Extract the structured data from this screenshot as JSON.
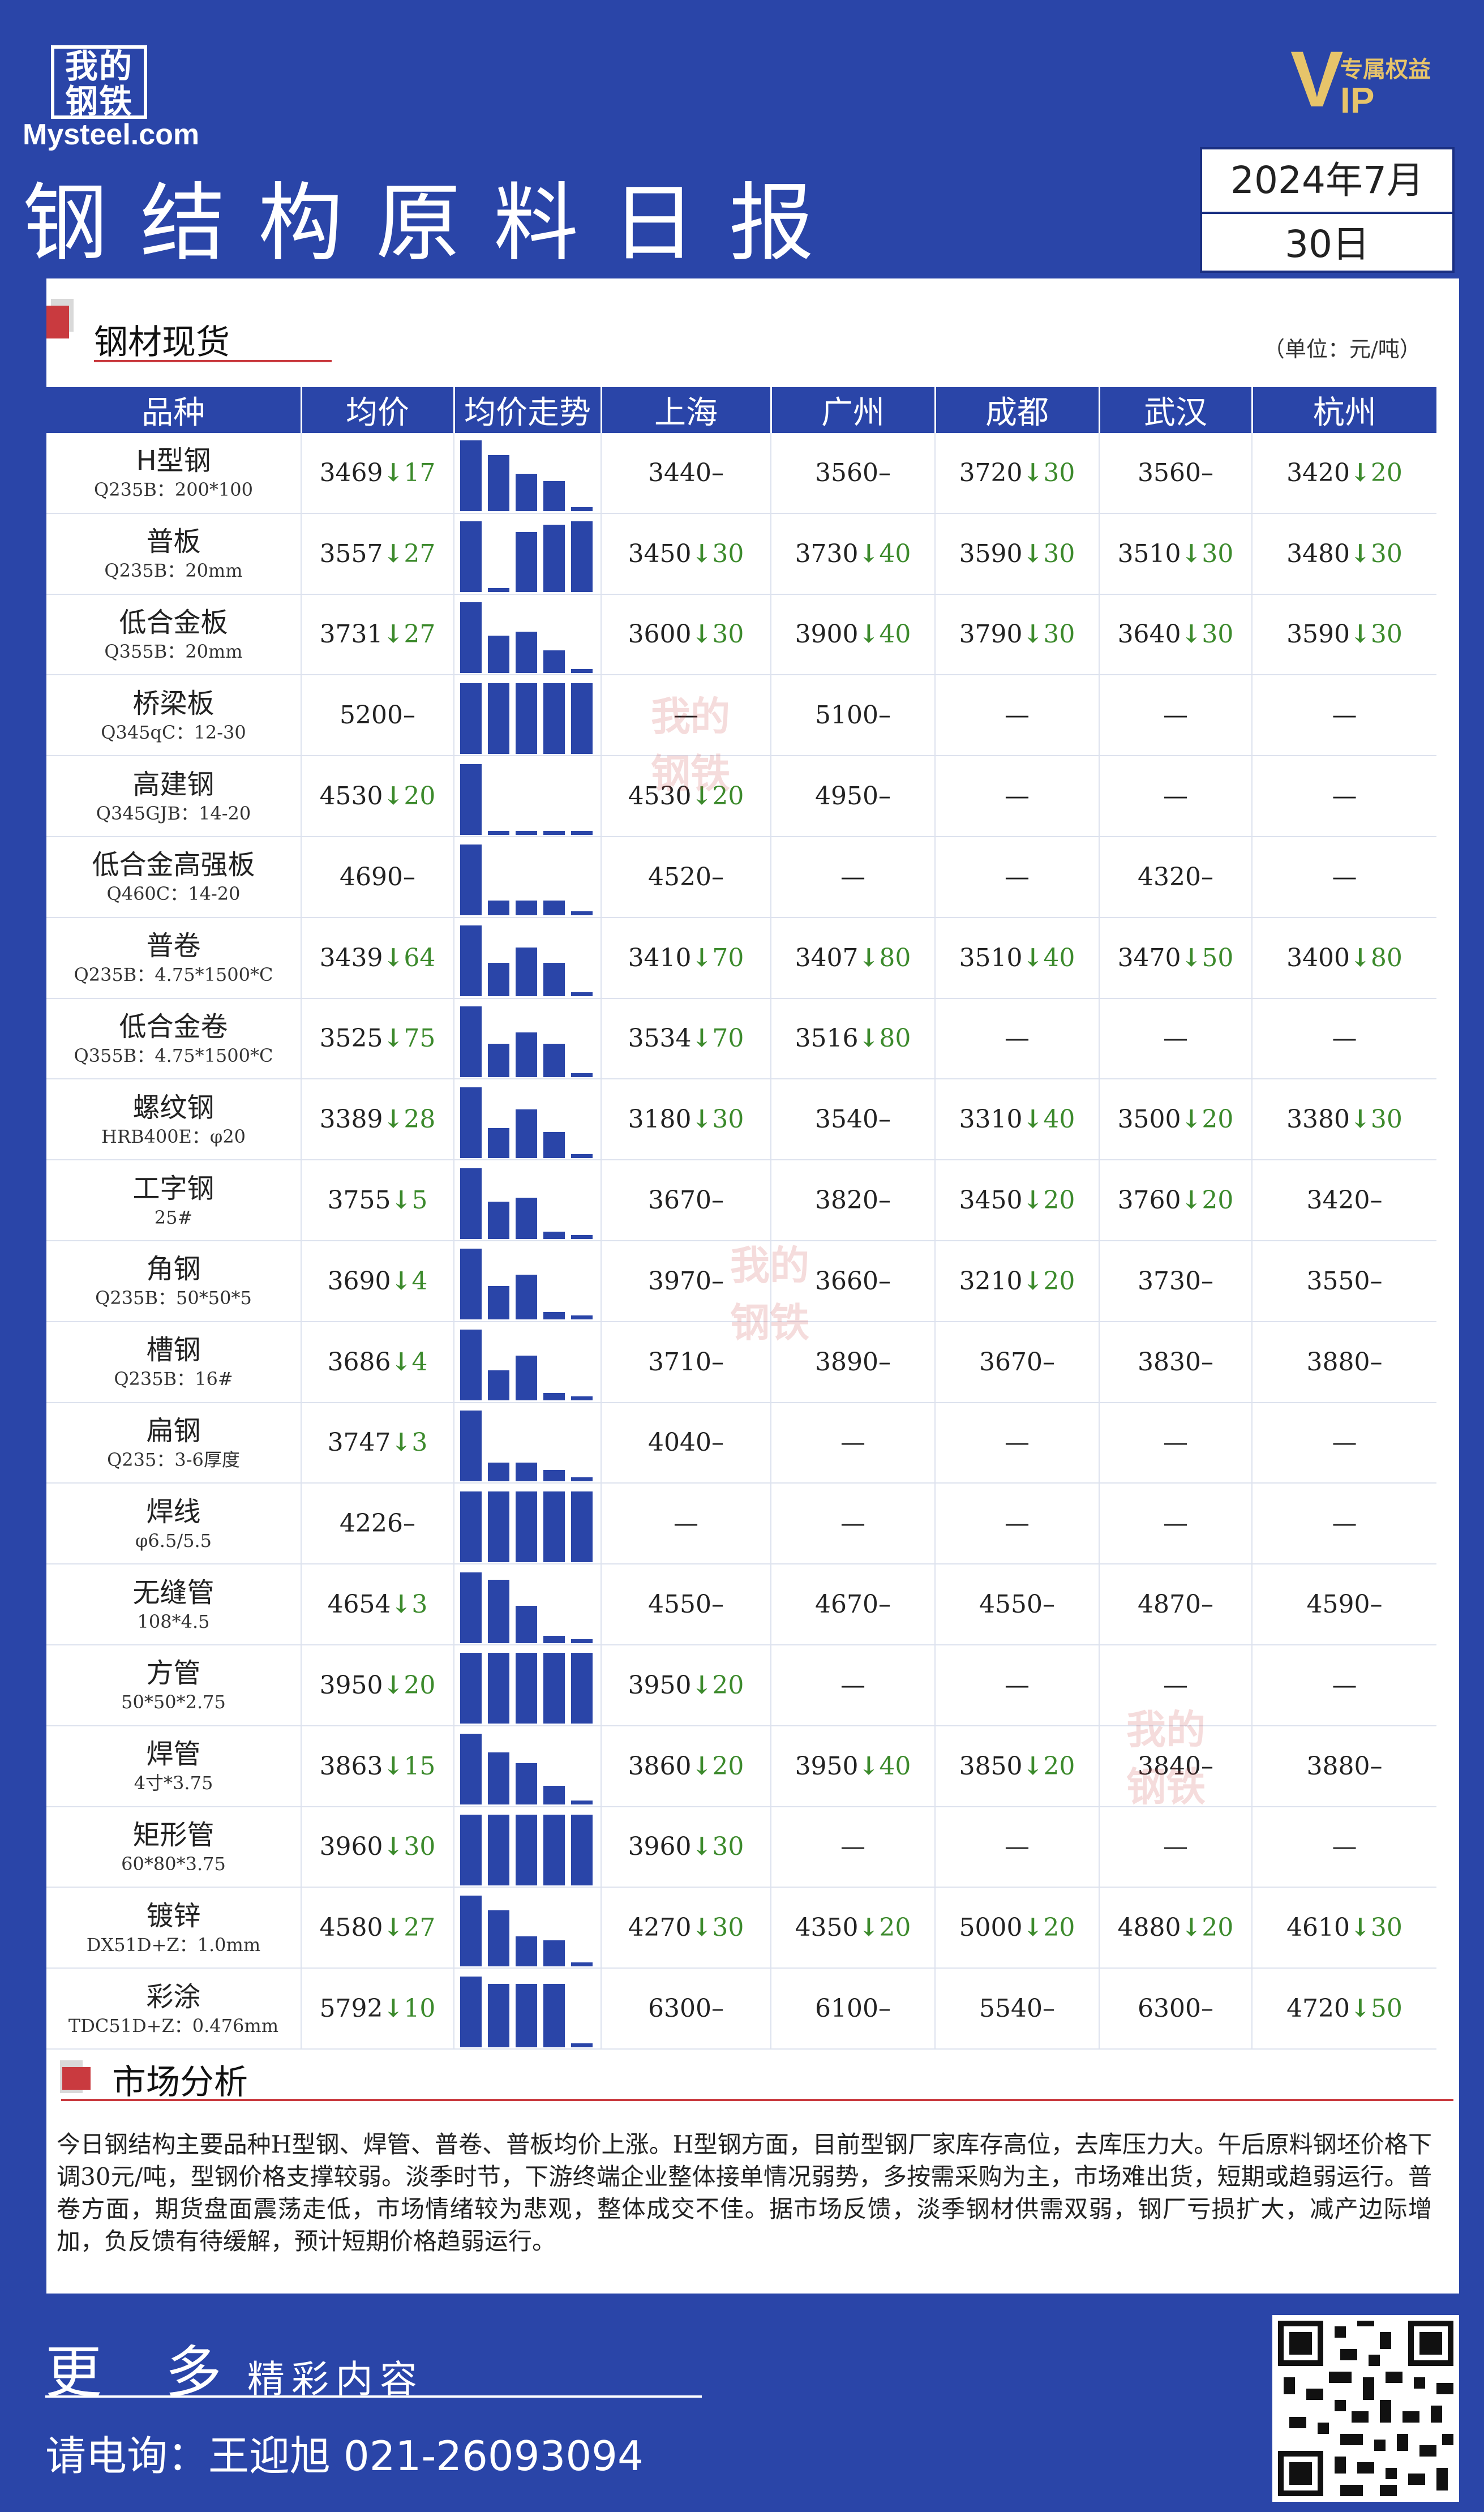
{
  "header": {
    "logo_cn": "我的钢铁",
    "logo_en": "Mysteel.com",
    "vip_badge": "专属权益",
    "title": "钢结构原料日报",
    "date_month": "2024年7月",
    "date_day": "30日"
  },
  "section1": {
    "title": "钢材现货",
    "unit": "（单位：元/吨）"
  },
  "table": {
    "columns": [
      "品种",
      "均价",
      "均价走势",
      "上海",
      "广州",
      "成都",
      "武汉",
      "杭州"
    ],
    "rows": [
      {
        "name": "H型钢",
        "spec": "Q235B：200*100",
        "avg": "3469",
        "avg_chg": "17",
        "bars": [
          0.95,
          0.75,
          0.5,
          0.4,
          0.05
        ],
        "sh": "3440",
        "sh_chg": "",
        "gz": "3560",
        "gz_chg": "",
        "cd": "3720",
        "cd_chg": "30",
        "wh": "3560",
        "wh_chg": "",
        "hz": "3420",
        "hz_chg": "20"
      },
      {
        "name": "普板",
        "spec": "Q235B：20mm",
        "avg": "3557",
        "avg_chg": "27",
        "bars": [
          0.95,
          0.05,
          0.8,
          0.9,
          0.95
        ],
        "sh": "3450",
        "sh_chg": "30",
        "gz": "3730",
        "gz_chg": "40",
        "cd": "3590",
        "cd_chg": "30",
        "wh": "3510",
        "wh_chg": "30",
        "hz": "3480",
        "hz_chg": "30"
      },
      {
        "name": "低合金板",
        "spec": "Q355B：20mm",
        "avg": "3731",
        "avg_chg": "27",
        "bars": [
          0.95,
          0.5,
          0.55,
          0.3,
          0.05
        ],
        "sh": "3600",
        "sh_chg": "30",
        "gz": "3900",
        "gz_chg": "40",
        "cd": "3790",
        "cd_chg": "30",
        "wh": "3640",
        "wh_chg": "30",
        "hz": "3590",
        "hz_chg": "30"
      },
      {
        "name": "桥梁板",
        "spec": "Q345qC：12-30",
        "avg": "5200",
        "avg_chg": "",
        "bars": [
          0.95,
          0.95,
          0.95,
          0.95,
          0.95
        ],
        "sh": "—",
        "sh_chg": "",
        "gz": "5100",
        "gz_chg": "",
        "cd": "—",
        "cd_chg": "",
        "wh": "—",
        "wh_chg": "",
        "hz": "—",
        "hz_chg": ""
      },
      {
        "name": "高建钢",
        "spec": "Q345GJB：14-20",
        "avg": "4530",
        "avg_chg": "20",
        "bars": [
          0.95,
          0.05,
          0.05,
          0.05,
          0.05
        ],
        "sh": "4530",
        "sh_chg": "20",
        "gz": "4950",
        "gz_chg": "",
        "cd": "—",
        "cd_chg": "",
        "wh": "—",
        "wh_chg": "",
        "hz": "—",
        "hz_chg": ""
      },
      {
        "name": "低合金高强板",
        "spec": "Q460C：14-20",
        "avg": "4690",
        "avg_chg": "",
        "bars": [
          0.95,
          0.2,
          0.2,
          0.2,
          0.05
        ],
        "sh": "4520",
        "sh_chg": "",
        "gz": "—",
        "gz_chg": "",
        "cd": "—",
        "cd_chg": "",
        "wh": "4320",
        "wh_chg": "",
        "hz": "—",
        "hz_chg": ""
      },
      {
        "name": "普卷",
        "spec": "Q235B：4.75*1500*C",
        "avg": "3439",
        "avg_chg": "64",
        "bars": [
          0.95,
          0.45,
          0.65,
          0.45,
          0.05
        ],
        "sh": "3410",
        "sh_chg": "70",
        "gz": "3407",
        "gz_chg": "80",
        "cd": "3510",
        "cd_chg": "40",
        "wh": "3470",
        "wh_chg": "50",
        "hz": "3400",
        "hz_chg": "80"
      },
      {
        "name": "低合金卷",
        "spec": "Q355B：4.75*1500*C",
        "avg": "3525",
        "avg_chg": "75",
        "bars": [
          0.95,
          0.45,
          0.6,
          0.45,
          0.05
        ],
        "sh": "3534",
        "sh_chg": "70",
        "gz": "3516",
        "gz_chg": "80",
        "cd": "—",
        "cd_chg": "",
        "wh": "—",
        "wh_chg": "",
        "hz": "—",
        "hz_chg": ""
      },
      {
        "name": "螺纹钢",
        "spec": "HRB400E：φ20",
        "avg": "3389",
        "avg_chg": "28",
        "bars": [
          0.95,
          0.4,
          0.65,
          0.35,
          0.05
        ],
        "sh": "3180",
        "sh_chg": "30",
        "gz": "3540",
        "gz_chg": "",
        "cd": "3310",
        "cd_chg": "40",
        "wh": "3500",
        "wh_chg": "20",
        "hz": "3380",
        "hz_chg": "30"
      },
      {
        "name": "工字钢",
        "spec": "25#",
        "avg": "3755",
        "avg_chg": "5",
        "bars": [
          0.95,
          0.5,
          0.55,
          0.1,
          0.05
        ],
        "sh": "3670",
        "sh_chg": "",
        "gz": "3820",
        "gz_chg": "",
        "cd": "3450",
        "cd_chg": "20",
        "wh": "3760",
        "wh_chg": "20",
        "hz": "3420",
        "hz_chg": ""
      },
      {
        "name": "角钢",
        "spec": "Q235B：50*50*5",
        "avg": "3690",
        "avg_chg": "4",
        "bars": [
          0.95,
          0.45,
          0.6,
          0.1,
          0.05
        ],
        "sh": "3970",
        "sh_chg": "",
        "gz": "3660",
        "gz_chg": "",
        "cd": "3210",
        "cd_chg": "20",
        "wh": "3730",
        "wh_chg": "",
        "hz": "3550",
        "hz_chg": ""
      },
      {
        "name": "槽钢",
        "spec": "Q235B：16#",
        "avg": "3686",
        "avg_chg": "4",
        "bars": [
          0.95,
          0.4,
          0.6,
          0.1,
          0.05
        ],
        "sh": "3710",
        "sh_chg": "",
        "gz": "3890",
        "gz_chg": "",
        "cd": "3670",
        "cd_chg": "",
        "wh": "3830",
        "wh_chg": "",
        "hz": "3880",
        "hz_chg": ""
      },
      {
        "name": "扁钢",
        "spec": "Q235：3-6厚度",
        "avg": "3747",
        "avg_chg": "3",
        "bars": [
          0.95,
          0.25,
          0.25,
          0.15,
          0.05
        ],
        "sh": "4040",
        "sh_chg": "",
        "gz": "—",
        "gz_chg": "",
        "cd": "—",
        "cd_chg": "",
        "wh": "—",
        "wh_chg": "",
        "hz": "—",
        "hz_chg": ""
      },
      {
        "name": "焊线",
        "spec": "φ6.5/5.5",
        "avg": "4226",
        "avg_chg": "",
        "bars": [
          0.95,
          0.95,
          0.95,
          0.95,
          0.95
        ],
        "sh": "—",
        "sh_chg": "",
        "gz": "—",
        "gz_chg": "",
        "cd": "—",
        "cd_chg": "",
        "wh": "—",
        "wh_chg": "",
        "hz": "—",
        "hz_chg": ""
      },
      {
        "name": "无缝管",
        "spec": "108*4.5",
        "avg": "4654",
        "avg_chg": "3",
        "bars": [
          0.95,
          0.85,
          0.5,
          0.1,
          0.05
        ],
        "sh": "4550",
        "sh_chg": "",
        "gz": "4670",
        "gz_chg": "",
        "cd": "4550",
        "cd_chg": "",
        "wh": "4870",
        "wh_chg": "",
        "hz": "4590",
        "hz_chg": ""
      },
      {
        "name": "方管",
        "spec": "50*50*2.75",
        "avg": "3950",
        "avg_chg": "20",
        "bars": [
          0.95,
          0.95,
          0.95,
          0.95,
          0.95
        ],
        "sh": "3950",
        "sh_chg": "20",
        "gz": "—",
        "gz_chg": "",
        "cd": "—",
        "cd_chg": "",
        "wh": "—",
        "wh_chg": "",
        "hz": "—",
        "hz_chg": ""
      },
      {
        "name": "焊管",
        "spec": "4寸*3.75",
        "avg": "3863",
        "avg_chg": "15",
        "bars": [
          0.95,
          0.7,
          0.55,
          0.25,
          0.05
        ],
        "sh": "3860",
        "sh_chg": "20",
        "gz": "3950",
        "gz_chg": "40",
        "cd": "3850",
        "cd_chg": "20",
        "wh": "3840",
        "wh_chg": "",
        "hz": "3880",
        "hz_chg": ""
      },
      {
        "name": "矩形管",
        "spec": "60*80*3.75",
        "avg": "3960",
        "avg_chg": "30",
        "bars": [
          0.95,
          0.95,
          0.95,
          0.95,
          0.95
        ],
        "sh": "3960",
        "sh_chg": "30",
        "gz": "—",
        "gz_chg": "",
        "cd": "—",
        "cd_chg": "",
        "wh": "—",
        "wh_chg": "",
        "hz": "—",
        "hz_chg": ""
      },
      {
        "name": "镀锌",
        "spec": "DX51D+Z：1.0mm",
        "avg": "4580",
        "avg_chg": "27",
        "bars": [
          0.95,
          0.75,
          0.4,
          0.35,
          0.05
        ],
        "sh": "4270",
        "sh_chg": "30",
        "gz": "4350",
        "gz_chg": "20",
        "cd": "5000",
        "cd_chg": "20",
        "wh": "4880",
        "wh_chg": "20",
        "hz": "4610",
        "hz_chg": "30"
      },
      {
        "name": "彩涂",
        "spec": "TDC51D+Z：0.476mm",
        "avg": "5792",
        "avg_chg": "10",
        "bars": [
          0.95,
          0.85,
          0.85,
          0.85,
          0.05
        ],
        "sh": "6300",
        "sh_chg": "",
        "gz": "6100",
        "gz_chg": "",
        "cd": "5540",
        "cd_chg": "",
        "wh": "6300",
        "wh_chg": "",
        "hz": "4720",
        "hz_chg": "50"
      }
    ]
  },
  "section2": {
    "title": "市场分析",
    "text": "今日钢结构主要品种H型钢、焊管、普卷、普板均价上涨。H型钢方面，目前型钢厂家库存高位，去库压力大。午后原料钢坯价格下调30元/吨，型钢价格支撑较弱。淡季时节，下游终端企业整体接单情况弱势，多按需采购为主，市场难出货，短期或趋弱运行。普卷方面，期货盘面震荡走低，市场情绪较为悲观，整体成交不佳。据市场反馈，淡季钢材供需双弱，钢厂亏损扩大，减产边际增加，负反馈有待缓解，预计短期价格趋弱运行。"
  },
  "footer": {
    "more_big": "更 多",
    "more_small": "精彩内容",
    "contact": "请电询：王迎旭  021-26093094"
  },
  "colors": {
    "brand_blue": "#2a45a8",
    "accent_red": "#c93a3f",
    "change_green": "#3c8a2c",
    "vip_gold": "#e7c46a"
  },
  "icons": {
    "arrow": "down-arrow-icon",
    "qr": "qr-code-icon"
  }
}
